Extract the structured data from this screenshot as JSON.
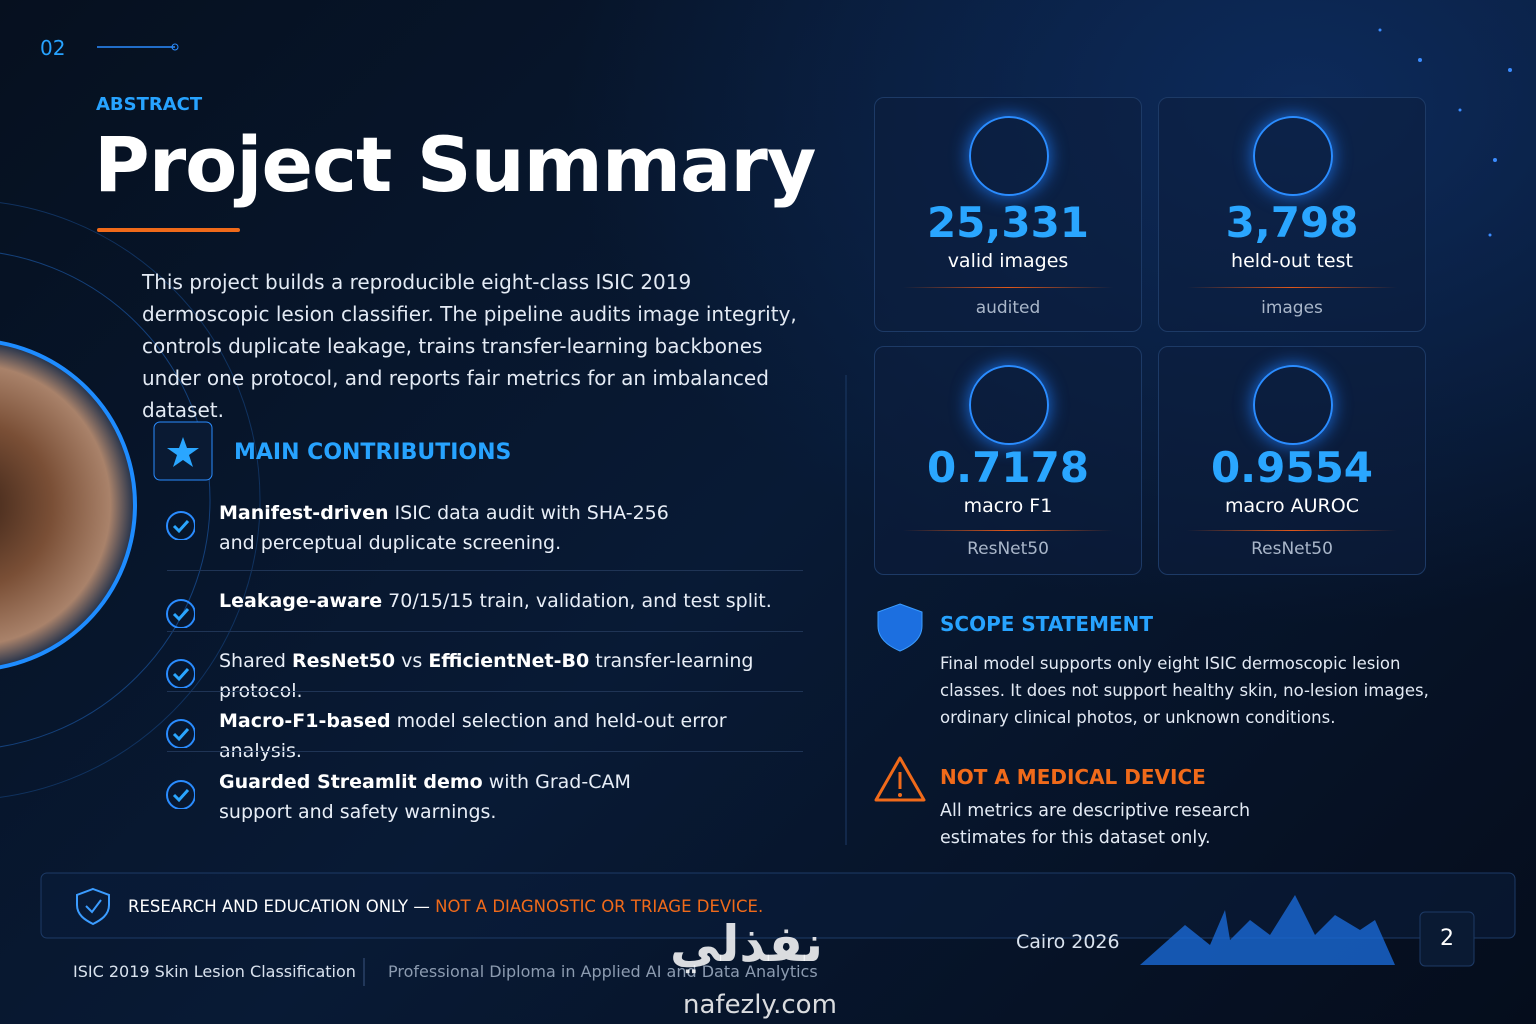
{
  "page_marker": "02",
  "header": {
    "eyebrow": "ABSTRACT",
    "title": "Project Summary"
  },
  "abstract": "This project builds a reproducible eight-class ISIC 2019 dermoscopic lesion classifier. The pipeline audits image integrity, controls duplicate leakage, trains transfer-learning backbones under one protocol, and reports fair metrics for an imbalanced dataset.",
  "contributions": {
    "title": "MAIN CONTRIBUTIONS",
    "items": [
      [
        {
          "text": "Manifest-driven",
          "bold": true
        },
        {
          "text": " ISIC data audit with SHA-256 and perceptual duplicate screening.",
          "bold": false
        }
      ],
      [
        {
          "text": "Leakage-aware",
          "bold": true
        },
        {
          "text": " 70/15/15 train, validation, and test split.",
          "bold": false
        }
      ],
      [
        {
          "text": "Shared ",
          "bold": false
        },
        {
          "text": "ResNet50",
          "bold": true
        },
        {
          "text": " vs ",
          "bold": false
        },
        {
          "text": "EfficientNet-B0",
          "bold": true
        },
        {
          "text": " transfer-learning protocol.",
          "bold": false
        }
      ],
      [
        {
          "text": "Macro-F1-based",
          "bold": true
        },
        {
          "text": " model selection and held-out error analysis.",
          "bold": false
        }
      ],
      [
        {
          "text": "Guarded Streamlit demo",
          "bold": true
        },
        {
          "text": " with Grad-CAM support and safety warnings.",
          "bold": false
        }
      ]
    ]
  },
  "stats": [
    {
      "value": "25,331",
      "label": "valid images",
      "note": "audited"
    },
    {
      "value": "3,798",
      "label": "held-out test",
      "note": "images"
    },
    {
      "value": "0.7178",
      "label": "macro F1",
      "note": "ResNet50"
    },
    {
      "value": "0.9554",
      "label": "macro AUROC",
      "note": "ResNet50"
    }
  ],
  "scope": {
    "title": "SCOPE STATEMENT",
    "text": "Final model supports only eight ISIC dermoscopic lesion classes. It does not support healthy skin, no-lesion images, ordinary clinical photos, or unknown conditions."
  },
  "warning": {
    "title": "NOT A MEDICAL DEVICE",
    "text": "All metrics are descriptive research estimates for this dataset only."
  },
  "banner": {
    "text": "RESEARCH AND EDUCATION ONLY — ",
    "highlight": "NOT A DIAGNOSTIC OR TRIAGE DEVICE."
  },
  "footer": {
    "project": "ISIC 2019 Skin Lesion Classification",
    "program": "Professional Diploma in Applied AI and Data Analytics",
    "location": "Cairo 2026",
    "page": "2"
  },
  "watermark": {
    "arabic": "نفذلي",
    "url": "nafezly.com"
  }
}
